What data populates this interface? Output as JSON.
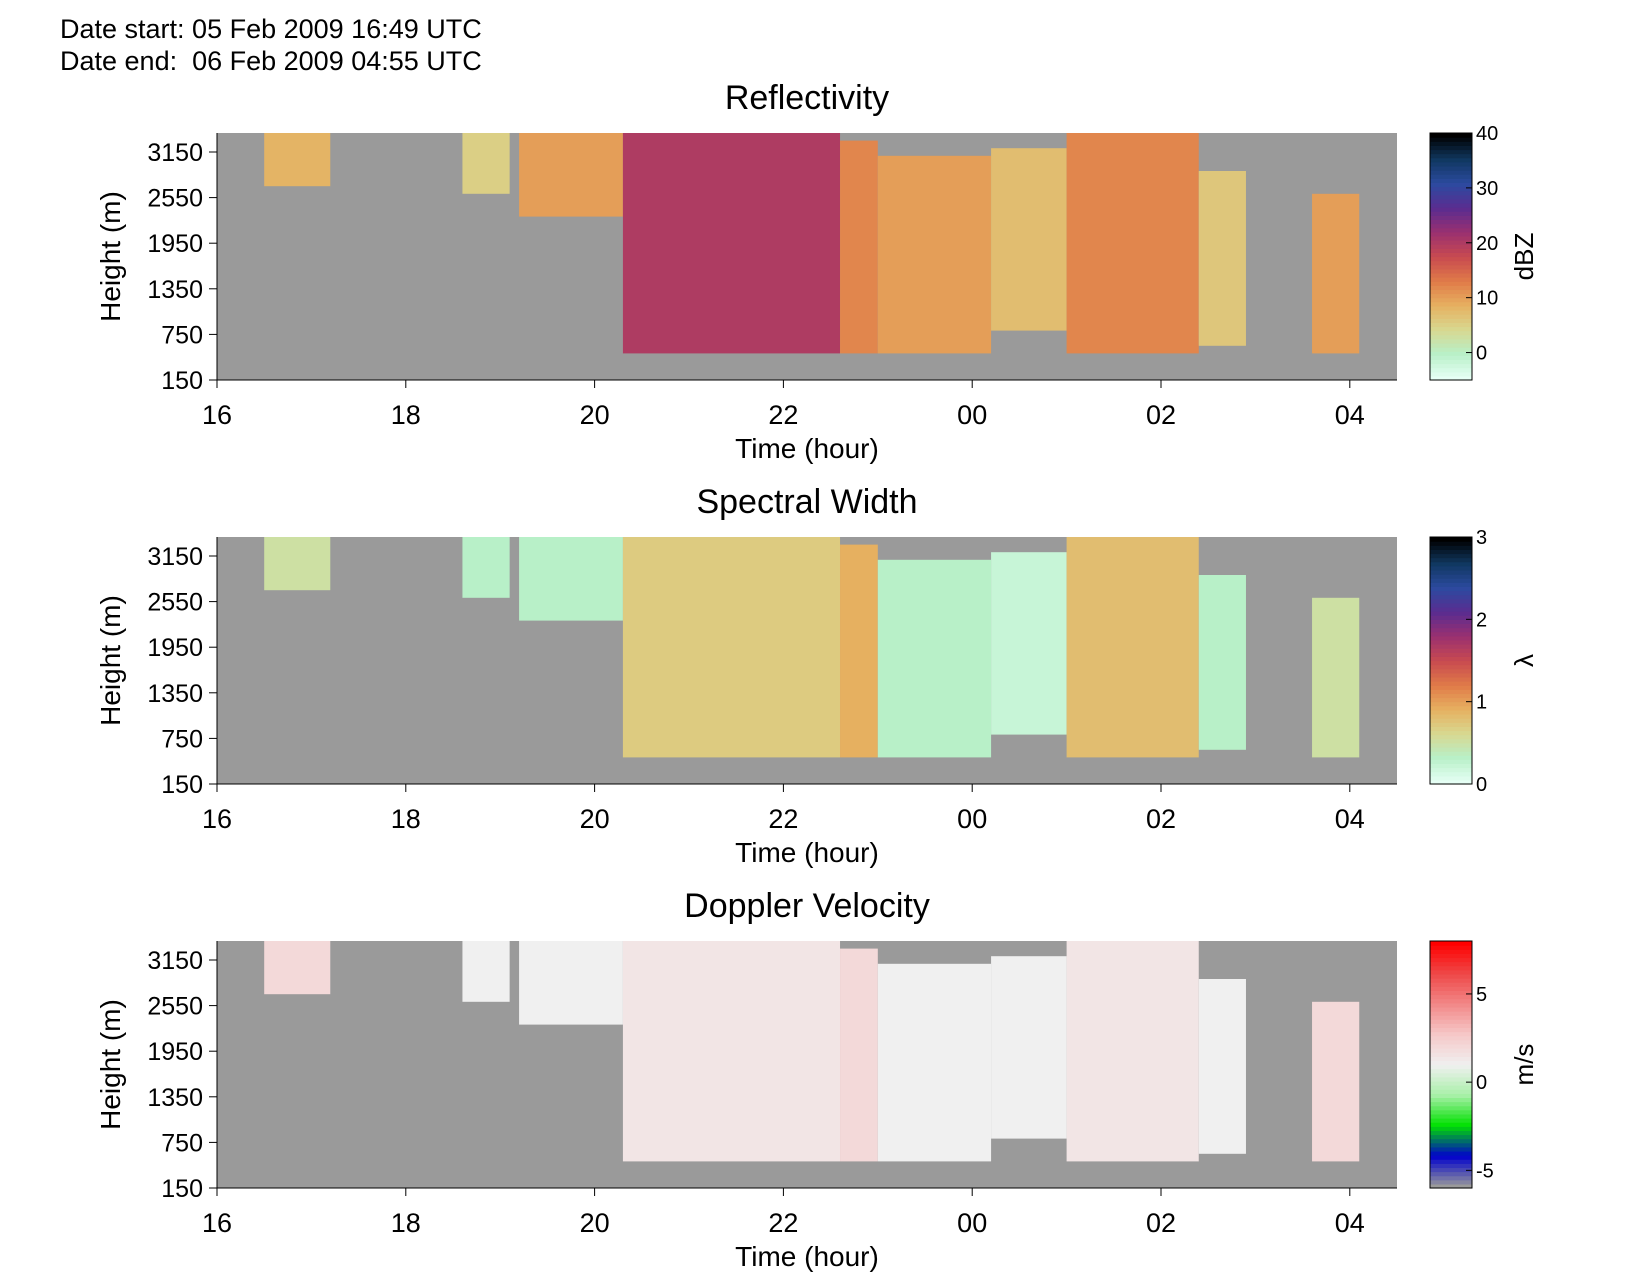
{
  "header": {
    "date_start": "Date start: 05 Feb 2009 16:49 UTC",
    "date_end": "Date end:  06 Feb 2009 04:55 UTC"
  },
  "colors": {
    "background_nodata": "#9a9a9a"
  },
  "chart_data": [
    {
      "type": "heatmap",
      "title": "Reflectivity",
      "xlabel": "Time (hour)",
      "ylabel": "Height (m)",
      "x_ticks": [
        "16",
        "18",
        "20",
        "22",
        "00",
        "02",
        "04"
      ],
      "x_tick_values": [
        16,
        18,
        20,
        22,
        24,
        26,
        28
      ],
      "xlim": [
        16,
        28.5
      ],
      "y_ticks": [
        "150",
        "750",
        "1350",
        "1950",
        "2550",
        "3150"
      ],
      "y_tick_values": [
        150,
        750,
        1350,
        1950,
        2550,
        3150
      ],
      "ylim": [
        150,
        3400
      ],
      "colorbar": {
        "label": "dBZ",
        "ticks": [
          "0",
          "10",
          "20",
          "30",
          "40"
        ],
        "tick_values": [
          0,
          10,
          20,
          30,
          40
        ],
        "range": [
          -5,
          40
        ]
      },
      "colormap": [
        "#e6fff5",
        "#b8f0c8",
        "#d8d890",
        "#e6b060",
        "#e07a48",
        "#c84a50",
        "#9a3070",
        "#5a2c90",
        "#2c4aa0",
        "#103860",
        "#000000"
      ],
      "echo_regions": [
        {
          "t0": 16.5,
          "t1": 17.2,
          "h_low": 2700,
          "h_high": 3400,
          "value": 8
        },
        {
          "t0": 18.6,
          "t1": 19.1,
          "h_low": 2600,
          "h_high": 3400,
          "value": 5
        },
        {
          "t0": 19.2,
          "t1": 20.3,
          "h_low": 2300,
          "h_high": 3400,
          "value": 10
        },
        {
          "t0": 20.3,
          "t1": 22.6,
          "h_low": 500,
          "h_high": 3400,
          "value": 20
        },
        {
          "t0": 22.6,
          "t1": 23.0,
          "h_low": 500,
          "h_high": 3300,
          "value": 12
        },
        {
          "t0": 23.0,
          "t1": 24.2,
          "h_low": 500,
          "h_high": 3100,
          "value": 10
        },
        {
          "t0": 24.2,
          "t1": 25.0,
          "h_low": 800,
          "h_high": 3200,
          "value": 7
        },
        {
          "t0": 25.0,
          "t1": 26.4,
          "h_low": 500,
          "h_high": 3400,
          "value": 12
        },
        {
          "t0": 26.4,
          "t1": 26.9,
          "h_low": 600,
          "h_high": 2900,
          "value": 6
        },
        {
          "t0": 27.6,
          "t1": 28.1,
          "h_low": 500,
          "h_high": 2600,
          "value": 10
        }
      ]
    },
    {
      "type": "heatmap",
      "title": "Spectral Width",
      "xlabel": "Time (hour)",
      "ylabel": "Height (m)",
      "x_ticks": [
        "16",
        "18",
        "20",
        "22",
        "00",
        "02",
        "04"
      ],
      "x_tick_values": [
        16,
        18,
        20,
        22,
        24,
        26,
        28
      ],
      "xlim": [
        16,
        28.5
      ],
      "y_ticks": [
        "150",
        "750",
        "1350",
        "1950",
        "2550",
        "3150"
      ],
      "y_tick_values": [
        150,
        750,
        1350,
        1950,
        2550,
        3150
      ],
      "ylim": [
        150,
        3400
      ],
      "colorbar": {
        "label": "λ",
        "ticks": [
          "0",
          "1",
          "2",
          "3"
        ],
        "tick_values": [
          0,
          1,
          2,
          3
        ],
        "range": [
          0,
          3
        ]
      },
      "colormap": [
        "#e6fff5",
        "#b8f0c8",
        "#d8d890",
        "#e6b060",
        "#e07a48",
        "#c84a50",
        "#9a3070",
        "#5a2c90",
        "#2c4aa0",
        "#103860",
        "#000000"
      ],
      "echo_regions": [
        {
          "t0": 16.5,
          "t1": 17.2,
          "h_low": 2700,
          "h_high": 3400,
          "value": 0.5
        },
        {
          "t0": 18.6,
          "t1": 19.1,
          "h_low": 2600,
          "h_high": 3400,
          "value": 0.3
        },
        {
          "t0": 19.2,
          "t1": 20.3,
          "h_low": 2300,
          "h_high": 3400,
          "value": 0.3
        },
        {
          "t0": 20.3,
          "t1": 22.6,
          "h_low": 500,
          "h_high": 3400,
          "value": 0.7
        },
        {
          "t0": 22.6,
          "t1": 23.0,
          "h_low": 500,
          "h_high": 3300,
          "value": 0.9
        },
        {
          "t0": 23.0,
          "t1": 24.2,
          "h_low": 500,
          "h_high": 3100,
          "value": 0.3
        },
        {
          "t0": 24.2,
          "t1": 25.0,
          "h_low": 800,
          "h_high": 3200,
          "value": 0.2
        },
        {
          "t0": 25.0,
          "t1": 26.4,
          "h_low": 500,
          "h_high": 3400,
          "value": 0.8
        },
        {
          "t0": 26.4,
          "t1": 26.9,
          "h_low": 600,
          "h_high": 2900,
          "value": 0.3
        },
        {
          "t0": 27.6,
          "t1": 28.1,
          "h_low": 500,
          "h_high": 2600,
          "value": 0.5
        }
      ]
    },
    {
      "type": "heatmap",
      "title": "Doppler Velocity",
      "xlabel": "Time (hour)",
      "ylabel": "Height (m)",
      "x_ticks": [
        "16",
        "18",
        "20",
        "22",
        "00",
        "02",
        "04"
      ],
      "x_tick_values": [
        16,
        18,
        20,
        22,
        24,
        26,
        28
      ],
      "xlim": [
        16,
        28.5
      ],
      "y_ticks": [
        "150",
        "750",
        "1350",
        "1950",
        "2550",
        "3150"
      ],
      "y_tick_values": [
        150,
        750,
        1350,
        1950,
        2550,
        3150
      ],
      "ylim": [
        150,
        3400
      ],
      "colorbar": {
        "label": "m/s",
        "ticks": [
          "-5",
          "0",
          "5"
        ],
        "tick_values": [
          -5,
          0,
          5
        ],
        "range": [
          -6,
          8
        ]
      },
      "colormap": [
        "#9a9a9a",
        "#0000cc",
        "#00e000",
        "#a8f0a8",
        "#f0f0f0",
        "#f6c8c8",
        "#f28888",
        "#ee4848",
        "#ff0000"
      ],
      "echo_regions": [
        {
          "t0": 16.5,
          "t1": 17.2,
          "h_low": 2700,
          "h_high": 3400,
          "value": 2
        },
        {
          "t0": 18.6,
          "t1": 19.1,
          "h_low": 2600,
          "h_high": 3400,
          "value": 1
        },
        {
          "t0": 19.2,
          "t1": 20.3,
          "h_low": 2300,
          "h_high": 3400,
          "value": 1
        },
        {
          "t0": 20.3,
          "t1": 22.6,
          "h_low": 500,
          "h_high": 3400,
          "value": 1.5
        },
        {
          "t0": 22.6,
          "t1": 23.0,
          "h_low": 500,
          "h_high": 3300,
          "value": 2
        },
        {
          "t0": 23.0,
          "t1": 24.2,
          "h_low": 500,
          "h_high": 3100,
          "value": 1
        },
        {
          "t0": 24.2,
          "t1": 25.0,
          "h_low": 800,
          "h_high": 3200,
          "value": 1
        },
        {
          "t0": 25.0,
          "t1": 26.4,
          "h_low": 500,
          "h_high": 3400,
          "value": 1.5
        },
        {
          "t0": 26.4,
          "t1": 26.9,
          "h_low": 600,
          "h_high": 2900,
          "value": 1
        },
        {
          "t0": 27.6,
          "t1": 28.1,
          "h_low": 500,
          "h_high": 2600,
          "value": 2
        }
      ]
    }
  ]
}
